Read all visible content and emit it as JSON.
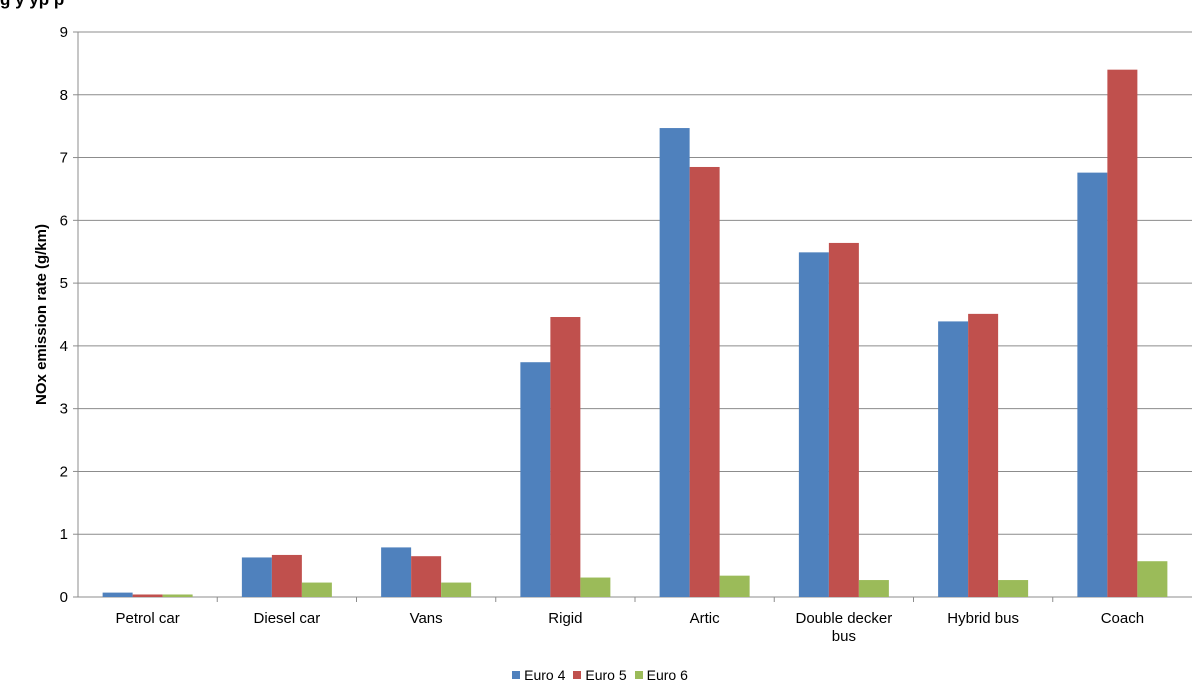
{
  "chart_data": {
    "type": "bar",
    "title": "",
    "xlabel": "",
    "ylabel": "NOx emission rate (g/km)",
    "ylim": [
      0,
      9
    ],
    "yticks": [
      0,
      1,
      2,
      3,
      4,
      5,
      6,
      7,
      8,
      9
    ],
    "grid": true,
    "legend_position": "bottom",
    "categories": [
      "Petrol car",
      "Diesel car",
      "Vans",
      "Rigid",
      "Artic",
      "Double decker bus",
      "Hybrid bus",
      "Coach"
    ],
    "series": [
      {
        "name": "Euro 4",
        "color": "#4f81bd",
        "values": [
          0.07,
          0.63,
          0.79,
          3.74,
          7.47,
          5.49,
          4.39,
          6.76
        ]
      },
      {
        "name": "Euro 5",
        "color": "#c0504d",
        "values": [
          0.04,
          0.67,
          0.65,
          4.46,
          6.85,
          5.64,
          4.51,
          8.4
        ]
      },
      {
        "name": "Euro 6",
        "color": "#9bbb59",
        "values": [
          0.04,
          0.23,
          0.23,
          0.31,
          0.34,
          0.27,
          0.27,
          0.57
        ]
      }
    ]
  },
  "header": {
    "title_fragment": "g                                    y        yp        p"
  }
}
